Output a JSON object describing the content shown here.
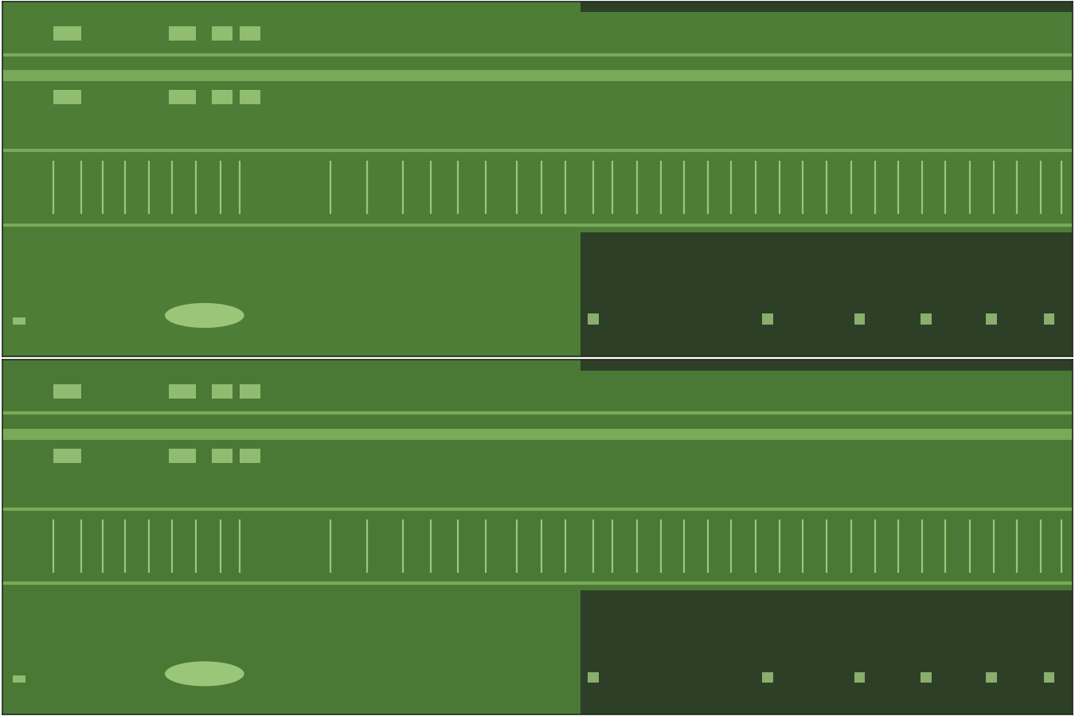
{
  "chart_data": [
    {
      "type": "spectrogram",
      "color": "#4d7d37",
      "xlim": [
        0,
        100
      ],
      "ylim": [
        0,
        100
      ],
      "xticks": [],
      "yticks": [],
      "tick_labels": false,
      "tones": [
        85,
        79,
        58,
        37
      ],
      "quiet": [
        {
          "start": 54,
          "end": 100,
          "low": 0,
          "high": 35
        },
        {
          "start": 54,
          "end": 100,
          "low": 97,
          "high": 100
        }
      ],
      "clicks": {
        "low": 40,
        "high": 55,
        "times": [
          4.8,
          7.4,
          9.4,
          11.5,
          13.7,
          15.9,
          18.1,
          20.4,
          22.2,
          30.7,
          34.1,
          37.4,
          40.0,
          42.6,
          45.2,
          48.1,
          50.4,
          52.6,
          55.2,
          57.0,
          59.3,
          61.5,
          63.7,
          65.9,
          68.1,
          70.4,
          72.6,
          74.8,
          77.0,
          79.3,
          81.5,
          83.7,
          85.9,
          88.1,
          90.4,
          92.6,
          94.8,
          97.0,
          98.9
        ]
      },
      "calls": [
        {
          "start": 4.8,
          "end": 7.4,
          "low": 89,
          "high": 93
        },
        {
          "start": 15.6,
          "end": 18.1,
          "low": 89,
          "high": 93
        },
        {
          "start": 19.6,
          "end": 21.5,
          "low": 89,
          "high": 93
        },
        {
          "start": 22.2,
          "end": 24.1,
          "low": 89,
          "high": 93
        },
        {
          "start": 4.8,
          "end": 7.4,
          "low": 71,
          "high": 75
        },
        {
          "start": 15.6,
          "end": 18.1,
          "low": 71,
          "high": 75
        },
        {
          "start": 19.6,
          "end": 21.5,
          "low": 71,
          "high": 75
        },
        {
          "start": 22.2,
          "end": 24.1,
          "low": 71,
          "high": 75
        },
        {
          "start": 1.0,
          "end": 2.2,
          "low": 9,
          "high": 11
        },
        {
          "start": 15.2,
          "end": 22.6,
          "low": 8,
          "high": 15
        },
        {
          "start": 54.7,
          "end": 55.7,
          "low": 9,
          "high": 12
        },
        {
          "start": 71.0,
          "end": 72.0,
          "low": 9,
          "high": 12
        },
        {
          "start": 79.6,
          "end": 80.6,
          "low": 9,
          "high": 12
        },
        {
          "start": 85.8,
          "end": 86.8,
          "low": 9,
          "high": 12
        },
        {
          "start": 91.9,
          "end": 92.9,
          "low": 9,
          "high": 12
        },
        {
          "start": 97.3,
          "end": 98.3,
          "low": 9,
          "high": 12
        }
      ]
    },
    {
      "type": "spectrogram",
      "color": "#4a7935",
      "xlim": [
        0,
        100
      ],
      "ylim": [
        0,
        100
      ],
      "xticks": [],
      "yticks": [],
      "tick_labels": false,
      "tones": [
        85,
        79,
        58,
        37
      ],
      "quiet": [
        {
          "start": 54,
          "end": 100,
          "low": 0,
          "high": 35
        },
        {
          "start": 54,
          "end": 100,
          "low": 97,
          "high": 100
        }
      ],
      "clicks": {
        "low": 40,
        "high": 55,
        "times": [
          4.8,
          7.4,
          9.4,
          11.5,
          13.7,
          15.9,
          18.1,
          20.4,
          22.2,
          30.7,
          34.1,
          37.4,
          40.0,
          42.6,
          45.2,
          48.1,
          50.4,
          52.6,
          55.2,
          57.0,
          59.3,
          61.5,
          63.7,
          65.9,
          68.1,
          70.4,
          72.6,
          74.8,
          77.0,
          79.3,
          81.5,
          83.7,
          85.9,
          88.1,
          90.4,
          92.6,
          94.8,
          97.0,
          98.9
        ]
      },
      "calls": [
        {
          "start": 4.8,
          "end": 7.4,
          "low": 89,
          "high": 93
        },
        {
          "start": 15.6,
          "end": 18.1,
          "low": 89,
          "high": 93
        },
        {
          "start": 19.6,
          "end": 21.5,
          "low": 89,
          "high": 93
        },
        {
          "start": 22.2,
          "end": 24.1,
          "low": 89,
          "high": 93
        },
        {
          "start": 4.8,
          "end": 7.4,
          "low": 71,
          "high": 75
        },
        {
          "start": 15.6,
          "end": 18.1,
          "low": 71,
          "high": 75
        },
        {
          "start": 19.6,
          "end": 21.5,
          "low": 71,
          "high": 75
        },
        {
          "start": 22.2,
          "end": 24.1,
          "low": 71,
          "high": 75
        },
        {
          "start": 1.0,
          "end": 2.2,
          "low": 9,
          "high": 11
        },
        {
          "start": 15.2,
          "end": 22.6,
          "low": 8,
          "high": 15
        },
        {
          "start": 54.7,
          "end": 55.7,
          "low": 9,
          "high": 12
        },
        {
          "start": 71.0,
          "end": 72.0,
          "low": 9,
          "high": 12
        },
        {
          "start": 79.6,
          "end": 80.6,
          "low": 9,
          "high": 12
        },
        {
          "start": 85.8,
          "end": 86.8,
          "low": 9,
          "high": 12
        },
        {
          "start": 91.9,
          "end": 92.9,
          "low": 9,
          "high": 12
        },
        {
          "start": 97.3,
          "end": 98.3,
          "low": 9,
          "high": 12
        }
      ]
    }
  ]
}
